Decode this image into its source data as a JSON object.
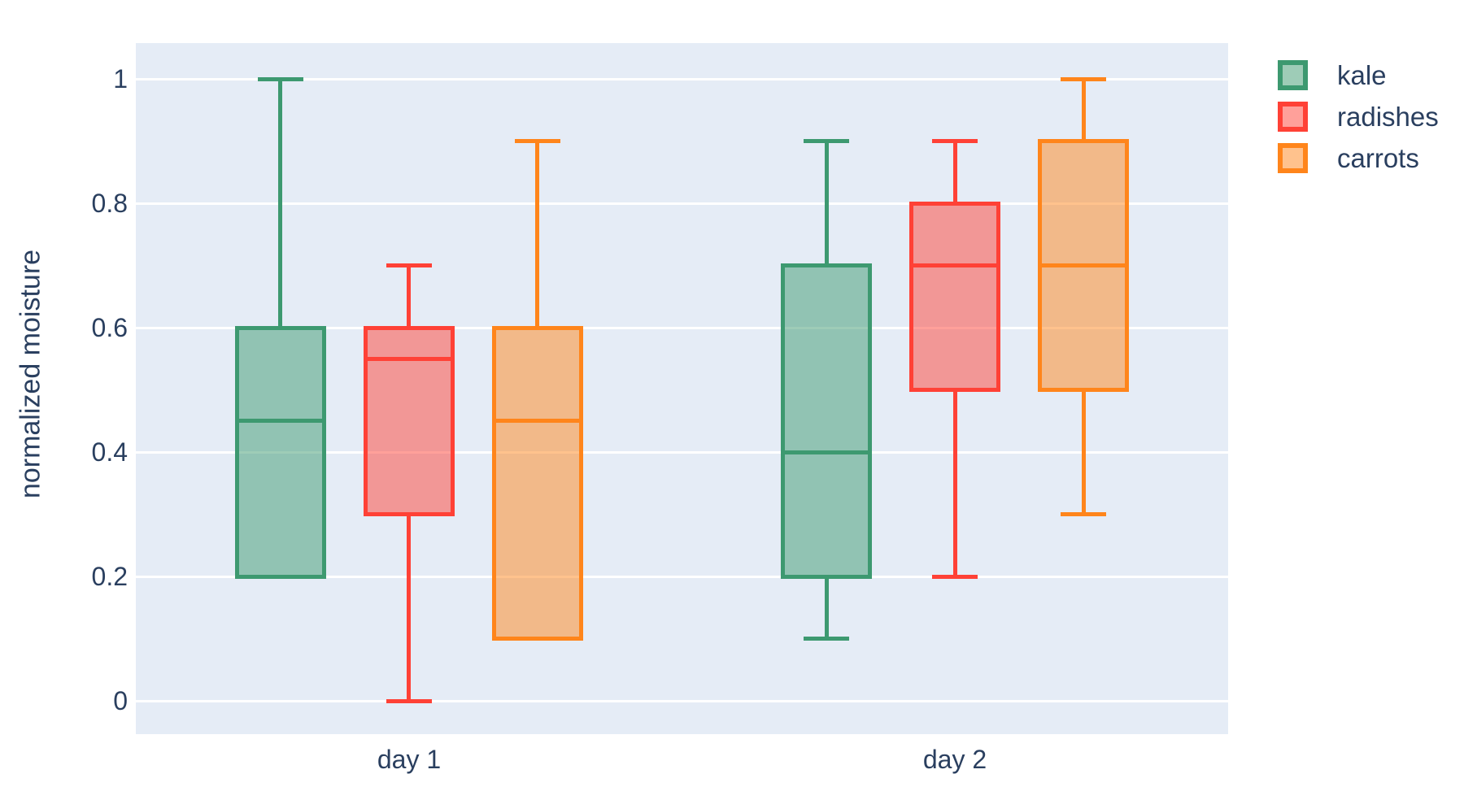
{
  "figure": {
    "background_color": "#ffffff",
    "plot_background_color": "#E5ECF6",
    "grid_color": "#ffffff",
    "text_color": "#2a3f5f"
  },
  "chart_data": {
    "type": "box",
    "mode": "grouped",
    "title": "",
    "xlabel": "",
    "ylabel": "normalized moisture",
    "categories": [
      "day 1",
      "day 2"
    ],
    "yticks": [
      1,
      0.8,
      0.6,
      0.4,
      0.2,
      0
    ],
    "ylim": [
      -0.06,
      1.06
    ],
    "grid": true,
    "legend_position": "top-right-outside",
    "series": [
      {
        "name": "kale",
        "color": "#3D9970",
        "boxes": [
          {
            "category": "day 1",
            "min": 0.2,
            "q1": 0.2,
            "median": 0.45,
            "q3": 0.6,
            "max": 1.0
          },
          {
            "category": "day 2",
            "min": 0.1,
            "q1": 0.2,
            "median": 0.4,
            "q3": 0.7,
            "max": 0.9
          }
        ]
      },
      {
        "name": "radishes",
        "color": "#FF4136",
        "boxes": [
          {
            "category": "day 1",
            "min": 0.0,
            "q1": 0.3,
            "median": 0.55,
            "q3": 0.6,
            "max": 0.7
          },
          {
            "category": "day 2",
            "min": 0.2,
            "q1": 0.5,
            "median": 0.7,
            "q3": 0.8,
            "max": 0.9
          }
        ]
      },
      {
        "name": "carrots",
        "color": "#FF851B",
        "boxes": [
          {
            "category": "day 1",
            "min": 0.1,
            "q1": 0.1,
            "median": 0.45,
            "q3": 0.6,
            "max": 0.9
          },
          {
            "category": "day 2",
            "min": 0.3,
            "q1": 0.5,
            "median": 0.7,
            "q3": 0.9,
            "max": 1.0
          }
        ]
      }
    ]
  }
}
